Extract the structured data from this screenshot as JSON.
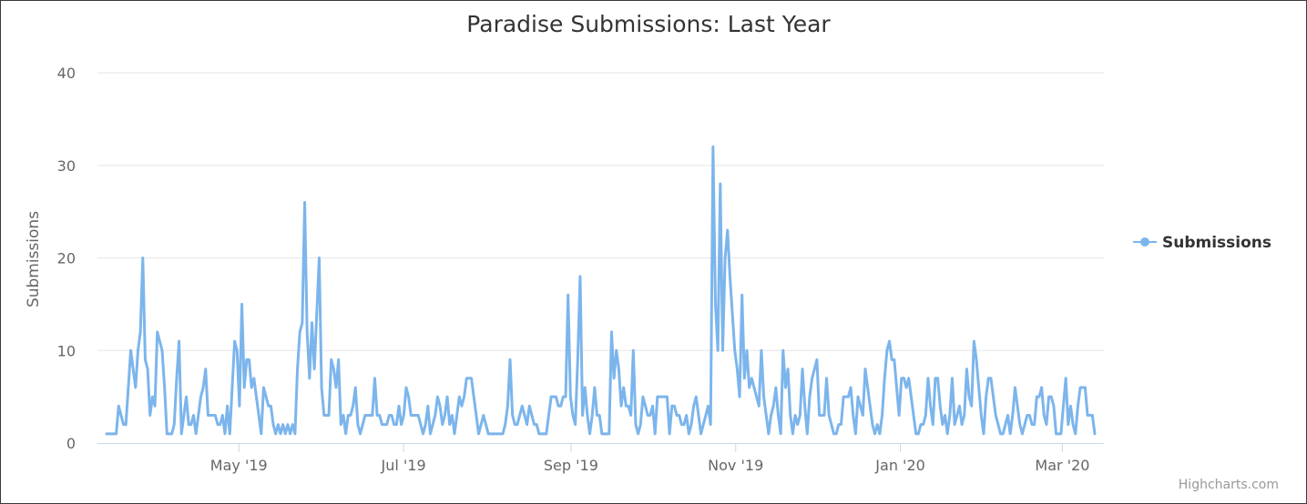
{
  "chart_data": {
    "type": "line",
    "title": "Paradise Submissions: Last Year",
    "xlabel": "",
    "ylabel": "Submissions",
    "ylim": [
      0,
      40
    ],
    "yticks": [
      0,
      10,
      20,
      30,
      40
    ],
    "grid": true,
    "x_start": "2019-03-13",
    "x_end": "2020-03-13",
    "x_ticks": [
      {
        "label": "May '19",
        "date": "2019-05-01"
      },
      {
        "label": "Jul '19",
        "date": "2019-07-01"
      },
      {
        "label": "Sep '19",
        "date": "2019-09-01"
      },
      {
        "label": "Nov '19",
        "date": "2019-11-01"
      },
      {
        "label": "Jan '20",
        "date": "2020-01-01"
      },
      {
        "label": "Mar '20",
        "date": "2020-03-01"
      }
    ],
    "legend": {
      "position": "right",
      "label": "Submissions"
    },
    "series": [
      {
        "name": "Submissions",
        "color": "#7cb5ec",
        "values": [
          1,
          1,
          1,
          1,
          1,
          4,
          3,
          2,
          2,
          6,
          10,
          8,
          6,
          10,
          12,
          20,
          9,
          8,
          3,
          5,
          4,
          12,
          11,
          10,
          6,
          1,
          1,
          1,
          2,
          7,
          11,
          1,
          3,
          5,
          2,
          2,
          3,
          1,
          3,
          5,
          6,
          8,
          3,
          3,
          3,
          3,
          2,
          2,
          3,
          1,
          4,
          1,
          6,
          11,
          10,
          4,
          15,
          6,
          9,
          9,
          6,
          7,
          5,
          3,
          1,
          6,
          5,
          4,
          4,
          2,
          1,
          2,
          1,
          2,
          1,
          2,
          1,
          2,
          1,
          8,
          12,
          13,
          26,
          12,
          7,
          13,
          8,
          14,
          20,
          6,
          3,
          3,
          3,
          9,
          8,
          6,
          9,
          2,
          3,
          1,
          3,
          3,
          4,
          6,
          2,
          1,
          2,
          3,
          3,
          3,
          3,
          7,
          3,
          3,
          2,
          2,
          2,
          3,
          3,
          2,
          2,
          4,
          2,
          3,
          6,
          5,
          3,
          3,
          3,
          3,
          2,
          1,
          2,
          4,
          1,
          2,
          3,
          5,
          4,
          2,
          3,
          5,
          2,
          3,
          1,
          3,
          5,
          4,
          5,
          7,
          7,
          7,
          5,
          3,
          1,
          2,
          3,
          2,
          1,
          1,
          1,
          1,
          1,
          1,
          1,
          2,
          4,
          9,
          3,
          2,
          2,
          3,
          4,
          3,
          2,
          4,
          3,
          2,
          2,
          1,
          1,
          1,
          1,
          3,
          5,
          5,
          5,
          4,
          4,
          5,
          5,
          16,
          5,
          3,
          2,
          9,
          18,
          3,
          6,
          3,
          1,
          3,
          6,
          3,
          3,
          1,
          1,
          1,
          1,
          12,
          7,
          10,
          8,
          4,
          6,
          4,
          4,
          3,
          10,
          2,
          1,
          2,
          5,
          4,
          3,
          3,
          4,
          1,
          5,
          5,
          5,
          5,
          5,
          1,
          4,
          4,
          3,
          3,
          2,
          2,
          3,
          1,
          2,
          4,
          5,
          3,
          1,
          2,
          3,
          4,
          2,
          32,
          15,
          10,
          28,
          10,
          20,
          23,
          18,
          14,
          10,
          8,
          5,
          16,
          7,
          10,
          6,
          7,
          6,
          5,
          4,
          10,
          5,
          3,
          1,
          3,
          4,
          6,
          3,
          1,
          10,
          6,
          8,
          3,
          1,
          3,
          2,
          3,
          8,
          4,
          1,
          5,
          7,
          8,
          9,
          3,
          3,
          3,
          7,
          3,
          2,
          1,
          1,
          2,
          2,
          5,
          5,
          5,
          6,
          3,
          1,
          5,
          4,
          3,
          8,
          6,
          4,
          2,
          1,
          2,
          1,
          3,
          7,
          10,
          11,
          9,
          9,
          6,
          3,
          7,
          7,
          6,
          7,
          5,
          3,
          1,
          1,
          2,
          2,
          3,
          7,
          4,
          2,
          7,
          7,
          4,
          2,
          3,
          1,
          3,
          7,
          2,
          3,
          4,
          2,
          3,
          8,
          5,
          4,
          11,
          9,
          6,
          3,
          1,
          5,
          7,
          7,
          5,
          3,
          2,
          1,
          1,
          2,
          3,
          1,
          3,
          6,
          4,
          2,
          1,
          2,
          3,
          3,
          2,
          2,
          5,
          5,
          6,
          3,
          2,
          5,
          5,
          4,
          1,
          1,
          1,
          4,
          7,
          2,
          4,
          2,
          1,
          4,
          6,
          6,
          6,
          3,
          3,
          3,
          1
        ]
      }
    ]
  },
  "credits": "Highcharts.com",
  "colors": {
    "series": "#7cb5ec",
    "grid": "#e6e6e6",
    "axis": "#ccd6eb",
    "title": "#333333",
    "tick_text": "#666666",
    "credits": "#999999"
  }
}
